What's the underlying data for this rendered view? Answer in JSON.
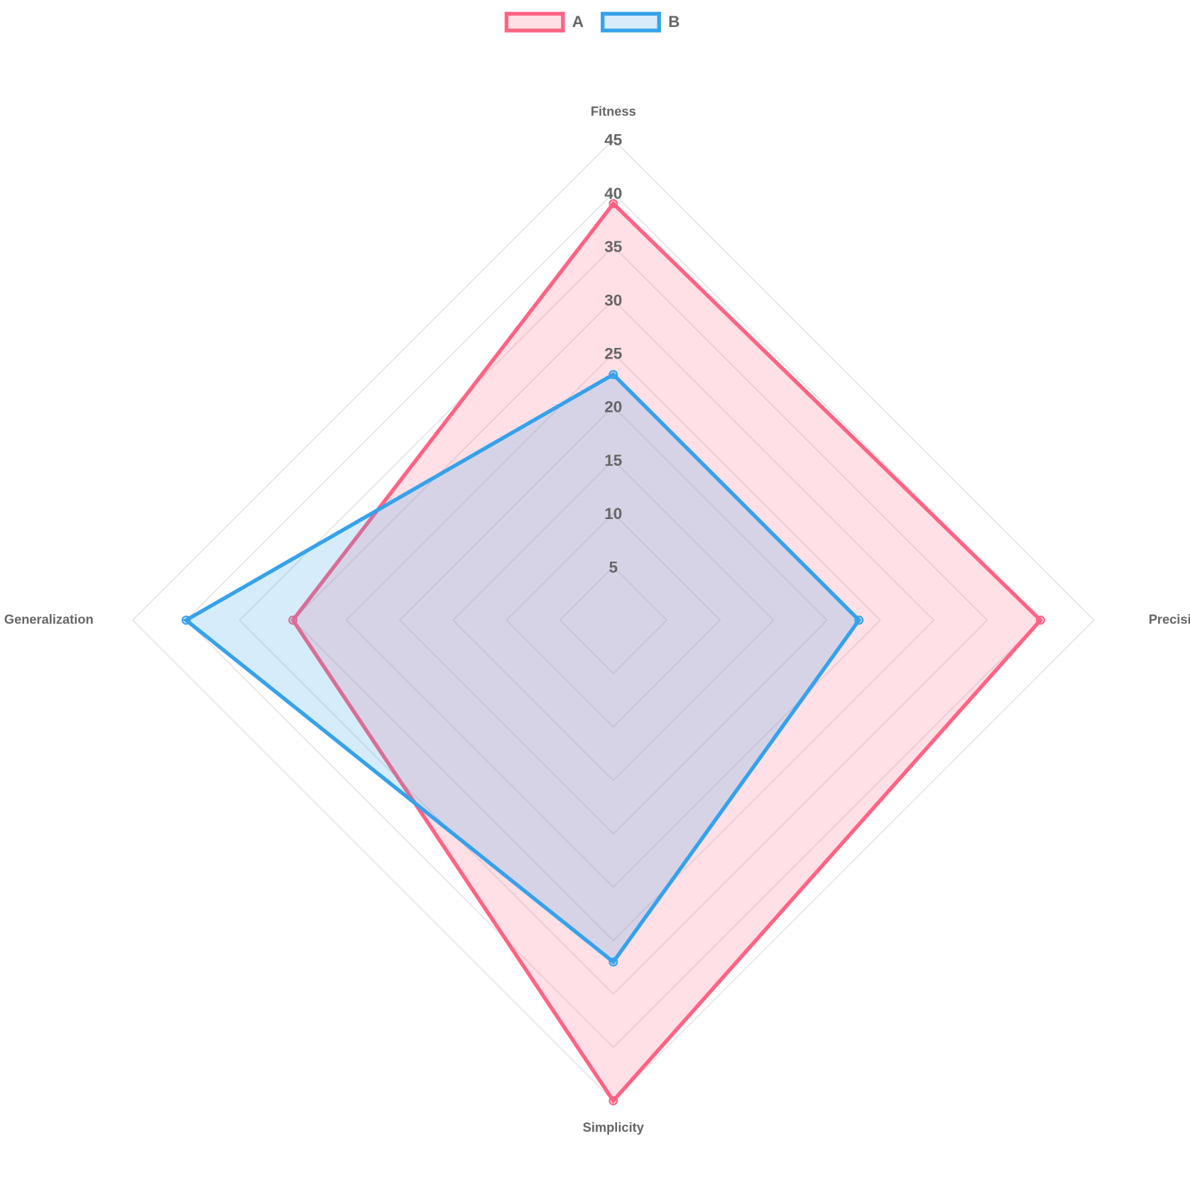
{
  "chart_data": {
    "type": "radar",
    "categories": [
      "Fitness",
      "Precision",
      "Simplicity",
      "Generalization"
    ],
    "series": [
      {
        "name": "A",
        "color": "#ff6384",
        "values": [
          39,
          40,
          45,
          30
        ]
      },
      {
        "name": "B",
        "color": "#36a2eb",
        "values": [
          23,
          23,
          32,
          40
        ]
      }
    ],
    "ylim": [
      0,
      45
    ],
    "yticks": [
      5,
      10,
      15,
      20,
      25,
      30,
      35,
      40,
      45
    ],
    "grid": true,
    "legend": "top"
  }
}
